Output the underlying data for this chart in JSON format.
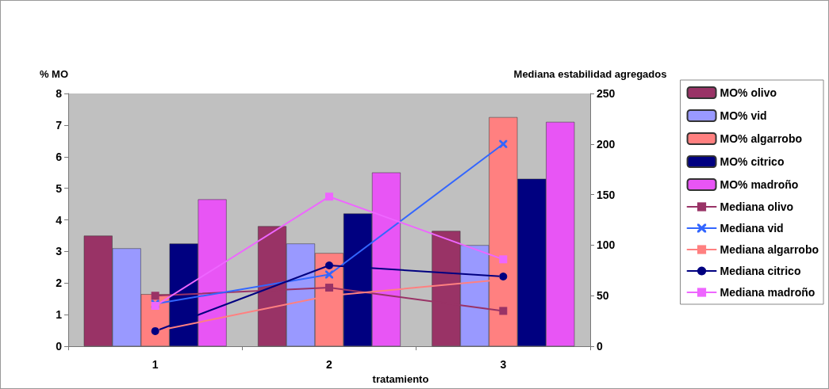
{
  "chart_data": {
    "type": "bar",
    "ylabel": "% MO",
    "y2label": "Mediana estabilidad agregados",
    "xlabel": "tratamiento",
    "categories": [
      "1",
      "2",
      "3"
    ],
    "ylim": [
      0,
      8
    ],
    "yticks": [
      0,
      1,
      2,
      3,
      4,
      5,
      6,
      7,
      8
    ],
    "y2lim": [
      0,
      250
    ],
    "y2ticks": [
      0,
      50,
      100,
      150,
      200,
      250
    ],
    "grid": false,
    "legend": "right",
    "series": [
      {
        "name": "MO% olivo",
        "color": "#993366",
        "values": [
          3.5,
          3.8,
          3.65
        ]
      },
      {
        "name": "MO% vid",
        "color": "#9999ff",
        "values": [
          3.1,
          3.25,
          3.2
        ]
      },
      {
        "name": "MO% algarrobo",
        "color": "#ff8080",
        "values": [
          1.65,
          2.95,
          7.25
        ]
      },
      {
        "name": "MO% citrico",
        "color": "#000080",
        "values": [
          3.25,
          4.2,
          5.3
        ]
      },
      {
        "name": "MO% madroño",
        "color": "#e855f5",
        "values": [
          4.65,
          5.5,
          7.1
        ]
      },
      {
        "name": "Mediana olivo",
        "type": "line",
        "axis": "y2",
        "marker": "square",
        "color": "#993366",
        "values": [
          50,
          58,
          35
        ]
      },
      {
        "name": "Mediana vid",
        "type": "line",
        "axis": "y2",
        "marker": "cross",
        "color": "#3366ff",
        "values": [
          42,
          71,
          200
        ]
      },
      {
        "name": "Mediana algarrobo",
        "type": "line",
        "axis": "y2",
        "marker": "square",
        "color": "#ff8080",
        "values": [
          15,
          50,
          66
        ]
      },
      {
        "name": "Mediana citrico",
        "type": "line",
        "axis": "y2",
        "marker": "circle",
        "color": "#000080",
        "values": [
          15,
          80,
          69
        ]
      },
      {
        "name": "Mediana madroño",
        "type": "line",
        "axis": "y2",
        "marker": "square",
        "color": "#ee66ff",
        "values": [
          40,
          148,
          86
        ]
      }
    ]
  }
}
